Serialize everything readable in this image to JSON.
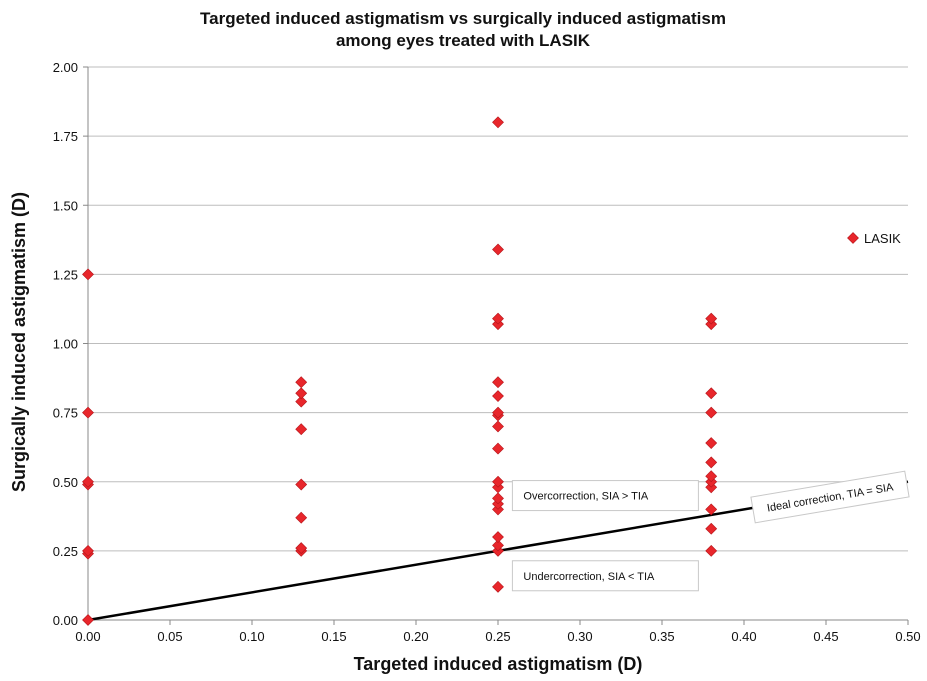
{
  "chart_data": {
    "type": "scatter",
    "title_line1": "Targeted induced astigmatism vs surgically induced astigmatism",
    "title_line2": "among eyes treated with LASIK",
    "xlabel": "Targeted induced astigmatism (D)",
    "ylabel": "Surgically induced astigmatism (D)",
    "xlim": [
      0,
      0.5
    ],
    "ylim": [
      0,
      2
    ],
    "x_ticks": [
      "0.00",
      "0.05",
      "0.10",
      "0.15",
      "0.20",
      "0.25",
      "0.30",
      "0.35",
      "0.40",
      "0.45",
      "0.50"
    ],
    "y_ticks": [
      "0.00",
      "0.25",
      "0.50",
      "0.75",
      "1.00",
      "1.25",
      "1.50",
      "1.75",
      "2.00"
    ],
    "grid": "horizontal",
    "legend_position": "right",
    "series": [
      {
        "name": "LASIK",
        "color": "#e8262b",
        "marker": "diamond",
        "points": [
          [
            0,
            0
          ],
          [
            0,
            0.24
          ],
          [
            0,
            0.25
          ],
          [
            0,
            0.49
          ],
          [
            0,
            0.5
          ],
          [
            0,
            0.75
          ],
          [
            0,
            1.25
          ],
          [
            0.13,
            0.25
          ],
          [
            0.13,
            0.26
          ],
          [
            0.13,
            0.37
          ],
          [
            0.13,
            0.49
          ],
          [
            0.13,
            0.69
          ],
          [
            0.13,
            0.79
          ],
          [
            0.13,
            0.82
          ],
          [
            0.13,
            0.86
          ],
          [
            0.25,
            0.12
          ],
          [
            0.25,
            0.25
          ],
          [
            0.25,
            0.27
          ],
          [
            0.25,
            0.3
          ],
          [
            0.25,
            0.4
          ],
          [
            0.25,
            0.42
          ],
          [
            0.25,
            0.44
          ],
          [
            0.25,
            0.48
          ],
          [
            0.25,
            0.5
          ],
          [
            0.25,
            0.62
          ],
          [
            0.25,
            0.7
          ],
          [
            0.25,
            0.74
          ],
          [
            0.25,
            0.75
          ],
          [
            0.25,
            0.81
          ],
          [
            0.25,
            0.86
          ],
          [
            0.25,
            1.07
          ],
          [
            0.25,
            1.09
          ],
          [
            0.25,
            1.34
          ],
          [
            0.25,
            1.8
          ],
          [
            0.38,
            0.25
          ],
          [
            0.38,
            0.33
          ],
          [
            0.38,
            0.4
          ],
          [
            0.38,
            0.48
          ],
          [
            0.38,
            0.5
          ],
          [
            0.38,
            0.52
          ],
          [
            0.38,
            0.57
          ],
          [
            0.38,
            0.64
          ],
          [
            0.38,
            0.75
          ],
          [
            0.38,
            0.82
          ],
          [
            0.38,
            1.07
          ],
          [
            0.38,
            1.09
          ]
        ]
      }
    ],
    "reference_line": {
      "label": "Ideal correction, TIA = SIA",
      "from": [
        0,
        0
      ],
      "to": [
        0.5,
        0.5
      ],
      "color": "#000000"
    },
    "annotations": [
      {
        "text": "Overcorrection, SIA > TIA",
        "x": 0.26,
        "y": 0.45
      },
      {
        "text": "Undercorrection, SIA < TIA",
        "x": 0.26,
        "y": 0.16
      }
    ]
  }
}
